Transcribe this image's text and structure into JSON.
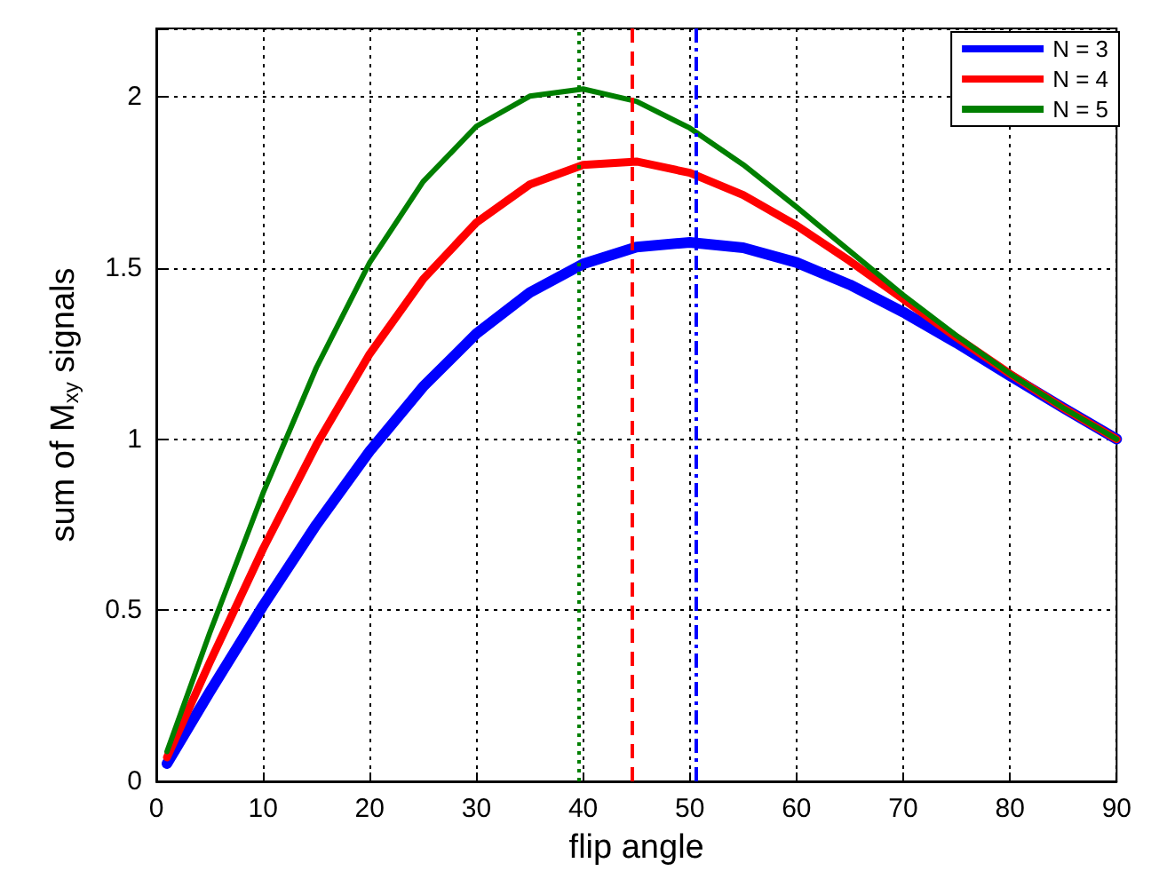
{
  "chart_data": {
    "type": "line",
    "xlabel": "flip angle",
    "ylabel": "sum of M$_{xy}$ signals",
    "x": [
      1,
      5,
      10,
      15,
      20,
      25,
      30,
      35,
      40,
      45,
      50,
      55,
      60,
      65,
      70,
      75,
      80,
      85,
      90
    ],
    "xlim": [
      0,
      90
    ],
    "xticks": [
      0,
      10,
      20,
      30,
      40,
      50,
      60,
      70,
      80,
      90
    ],
    "ylim": [
      0,
      2.2
    ],
    "yticks": [
      0,
      0.5,
      1,
      1.5,
      2
    ],
    "grid": true,
    "legend": "top right",
    "marker": "none",
    "line_style": "solid",
    "series": [
      {
        "name": "N = 3",
        "color": "#0000ff",
        "values": [
          0.052,
          0.261,
          0.513,
          0.75,
          0.965,
          1.153,
          1.308,
          1.428,
          1.512,
          1.561,
          1.575,
          1.559,
          1.516,
          1.451,
          1.371,
          1.281,
          1.185,
          1.091,
          1
        ]
      },
      {
        "name": "N = 4",
        "color": "#ff0000",
        "values": [
          0.07,
          0.347,
          0.679,
          0.983,
          1.249,
          1.467,
          1.633,
          1.744,
          1.801,
          1.811,
          1.778,
          1.713,
          1.624,
          1.52,
          1.409,
          1.297,
          1.191,
          1.091,
          1
        ]
      },
      {
        "name": "N = 5",
        "color": "#007f00",
        "values": [
          0.087,
          0.433,
          0.842,
          1.209,
          1.516,
          1.752,
          1.914,
          2.002,
          2.023,
          1.987,
          1.909,
          1.802,
          1.678,
          1.549,
          1.421,
          1.302,
          1.191,
          1.091,
          1
        ]
      }
    ],
    "ref_lines": [
      {
        "axis": "x",
        "value": 39.5,
        "color": "#007f00",
        "line_style": "dotted"
      },
      {
        "axis": "x",
        "value": 44.5,
        "color": "#ff0000",
        "line_style": "dashed"
      },
      {
        "axis": "x",
        "value": 50.5,
        "color": "#0000ff",
        "line_style": "dashdot"
      }
    ]
  }
}
